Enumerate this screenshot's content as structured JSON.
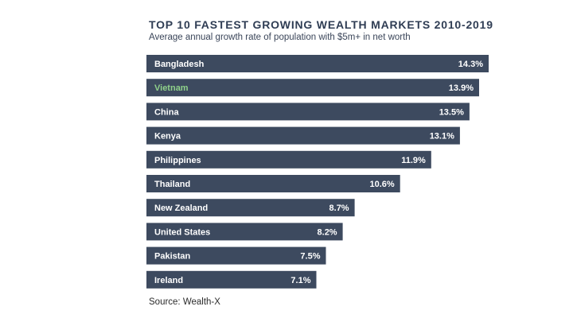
{
  "title": "TOP 10 FASTEST GROWING WEALTH MARKETS 2010-2019",
  "subtitle": "Average annual growth rate of population with $5m+ in net worth",
  "source": "Source: Wealth-X",
  "colors": {
    "bar": "#3d4a5f",
    "label": "#ffffff",
    "highlight_label": "#8fd18a",
    "title": "#2f3d54"
  },
  "chart_data": {
    "type": "bar",
    "orientation": "horizontal",
    "title": "TOP 10 FASTEST GROWING WEALTH MARKETS 2010-2019",
    "subtitle": "Average annual growth rate of population with $5m+ in net worth",
    "categories": [
      "Bangladesh",
      "Vietnam",
      "China",
      "Kenya",
      "Philippines",
      "Thailand",
      "New Zealand",
      "United States",
      "Pakistan",
      "Ireland"
    ],
    "values": [
      14.3,
      13.9,
      13.5,
      13.1,
      11.9,
      10.6,
      8.7,
      8.2,
      7.5,
      7.1
    ],
    "value_labels": [
      "14.3%",
      "13.9%",
      "13.5%",
      "13.1%",
      "11.9%",
      "10.6%",
      "8.7%",
      "8.2%",
      "7.5%",
      "7.1%"
    ],
    "highlight_category": "Vietnam",
    "xlim": [
      0,
      14.3
    ],
    "grid": false,
    "legend": "none"
  }
}
